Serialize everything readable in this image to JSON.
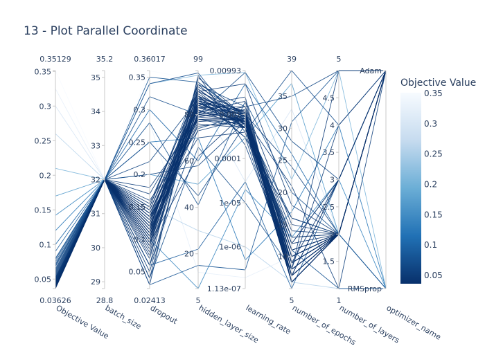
{
  "chart_data": {
    "type": "parallel_coordinates",
    "title": "13 - Plot Parallel Coordinate",
    "colorbar": {
      "title": "Objective Value",
      "range": [
        0.03626,
        0.35129
      ],
      "ticks": [
        "0.35",
        "0.3",
        "0.25",
        "0.2",
        "0.15",
        "0.1",
        "0.05"
      ],
      "tick_values": [
        0.35,
        0.3,
        0.25,
        0.2,
        0.15,
        0.1,
        0.05
      ],
      "colorscale": [
        "#08306b",
        "#2171b5",
        "#6baed6",
        "#c6dbef",
        "#f7fbff"
      ]
    },
    "dimensions": [
      {
        "label": "Objective Value",
        "range": [
          0.03626,
          0.35129
        ],
        "range_labels": [
          "0.03626",
          "0.35129"
        ],
        "scale": "linear",
        "ticks": [
          0.05,
          0.1,
          0.15,
          0.2,
          0.25,
          0.3,
          0.35
        ],
        "tick_labels": [
          "0.05",
          "0.1",
          "0.15",
          "0.2",
          "0.25",
          "0.3",
          "0.35"
        ]
      },
      {
        "label": "batch_size",
        "range": [
          28.8,
          35.2
        ],
        "range_labels": [
          "28.8",
          "35.2"
        ],
        "scale": "linear",
        "ticks": [
          29,
          30,
          31,
          32,
          33,
          34,
          35
        ],
        "tick_labels": [
          "29",
          "30",
          "31",
          "32",
          "33",
          "34",
          "35"
        ]
      },
      {
        "label": "dropout",
        "range": [
          0.02413,
          0.36017
        ],
        "range_labels": [
          "0.02413",
          "0.36017"
        ],
        "scale": "linear",
        "ticks": [
          0.05,
          0.1,
          0.15,
          0.2,
          0.25,
          0.3,
          0.35
        ],
        "tick_labels": [
          "0.05",
          "0.1",
          "0.15",
          "0.2",
          "0.25",
          "0.3",
          "0.35"
        ]
      },
      {
        "label": "hidden_layer_size",
        "range": [
          5,
          99
        ],
        "range_labels": [
          "5",
          "99"
        ],
        "scale": "linear",
        "ticks": [
          20,
          40,
          60,
          80
        ],
        "tick_labels": [
          "20",
          "40",
          "60",
          "80"
        ]
      },
      {
        "label": "learning_rate",
        "range": [
          1.13e-07,
          0.00993
        ],
        "range_labels": [
          "1.13e-07",
          "0.00993"
        ],
        "scale": "log",
        "ticks": [
          1e-06,
          1e-05,
          0.0001,
          0.001
        ],
        "tick_labels": [
          "1e-06",
          "1e-05",
          "0.0001",
          "0.001"
        ]
      },
      {
        "label": "number_of_epochs",
        "range": [
          5,
          39
        ],
        "range_labels": [
          "5",
          "39"
        ],
        "scale": "linear",
        "ticks": [
          10,
          15,
          20,
          25,
          30,
          35
        ],
        "tick_labels": [
          "10",
          "15",
          "20",
          "25",
          "30",
          "35"
        ]
      },
      {
        "label": "number_of_layers",
        "range": [
          1,
          5
        ],
        "range_labels": [
          "1",
          "5"
        ],
        "scale": "linear",
        "ticks": [
          1.5,
          2,
          2.5,
          3,
          3.5,
          4,
          4.5
        ],
        "tick_labels": [
          "1.5",
          "2",
          "2.5",
          "3",
          "3.5",
          "4",
          "4.5"
        ]
      },
      {
        "label": "optimizer_name",
        "range": [
          0,
          1
        ],
        "range_labels": [
          "RMSprop",
          "Adam"
        ],
        "scale": "categorical",
        "ticks": [],
        "tick_labels": []
      }
    ],
    "records": [
      [
        0.0363,
        32,
        0.12,
        82,
        0.0005,
        6,
        2,
        1
      ],
      [
        0.0365,
        32,
        0.11,
        80,
        0.0007,
        8,
        2,
        1
      ],
      [
        0.037,
        32,
        0.1,
        85,
        0.0006,
        7,
        2,
        1
      ],
      [
        0.0372,
        32,
        0.13,
        78,
        0.0008,
        9,
        2,
        1
      ],
      [
        0.0375,
        32,
        0.09,
        88,
        0.0005,
        6,
        2,
        1
      ],
      [
        0.0378,
        32,
        0.14,
        83,
        0.001,
        10,
        2,
        1
      ],
      [
        0.038,
        32,
        0.12,
        86,
        0.0009,
        7,
        2,
        1
      ],
      [
        0.0382,
        32,
        0.105,
        79,
        0.0007,
        8,
        2,
        1
      ],
      [
        0.0385,
        32,
        0.115,
        90,
        0.0011,
        6,
        2,
        1
      ],
      [
        0.0388,
        32,
        0.125,
        84,
        0.0006,
        9,
        2,
        1
      ],
      [
        0.039,
        32,
        0.095,
        81,
        0.0008,
        11,
        2,
        1
      ],
      [
        0.0392,
        32,
        0.135,
        87,
        0.0012,
        7,
        2,
        1
      ],
      [
        0.0395,
        32,
        0.11,
        76,
        0.0005,
        8,
        2,
        1
      ],
      [
        0.0398,
        32,
        0.1,
        92,
        0.001,
        10,
        2,
        1
      ],
      [
        0.04,
        32,
        0.145,
        85,
        0.0007,
        6,
        2,
        1
      ],
      [
        0.0403,
        32,
        0.12,
        80,
        0.0009,
        12,
        2,
        1
      ],
      [
        0.0405,
        32,
        0.13,
        89,
        0.0006,
        7,
        3,
        1
      ],
      [
        0.0408,
        32,
        0.085,
        83,
        0.0015,
        9,
        2,
        1
      ],
      [
        0.041,
        32,
        0.115,
        77,
        0.0008,
        8,
        2,
        1
      ],
      [
        0.0413,
        32,
        0.15,
        91,
        0.0007,
        6,
        2,
        1
      ],
      [
        0.0415,
        32,
        0.105,
        86,
        0.0011,
        11,
        2,
        1
      ],
      [
        0.0418,
        32,
        0.125,
        82,
        0.0005,
        13,
        2,
        1
      ],
      [
        0.042,
        32,
        0.095,
        88,
        0.0009,
        7,
        2,
        1
      ],
      [
        0.0423,
        32,
        0.14,
        79,
        0.0013,
        9,
        3,
        1
      ],
      [
        0.0425,
        32,
        0.11,
        93,
        0.0006,
        8,
        2,
        1
      ],
      [
        0.0428,
        32,
        0.08,
        84,
        0.001,
        10,
        2,
        1
      ],
      [
        0.043,
        32,
        0.135,
        75,
        0.0007,
        6,
        2,
        1
      ],
      [
        0.0433,
        32,
        0.12,
        87,
        0.0008,
        14,
        2,
        1
      ],
      [
        0.0435,
        32,
        0.1,
        81,
        0.002,
        7,
        2,
        1
      ],
      [
        0.0438,
        32,
        0.155,
        90,
        0.0005,
        9,
        2,
        1
      ],
      [
        0.044,
        32,
        0.09,
        85,
        0.0012,
        8,
        2,
        1
      ],
      [
        0.0443,
        32,
        0.13,
        78,
        0.0006,
        12,
        3,
        1
      ],
      [
        0.0445,
        32,
        0.115,
        94,
        0.0009,
        6,
        2,
        1
      ],
      [
        0.0448,
        32,
        0.075,
        83,
        0.0007,
        10,
        2,
        1
      ],
      [
        0.045,
        32,
        0.145,
        88,
        0.001,
        7,
        2,
        1
      ],
      [
        0.0455,
        32,
        0.105,
        80,
        0.0015,
        15,
        2,
        1
      ],
      [
        0.046,
        32,
        0.125,
        86,
        0.0005,
        9,
        2,
        1
      ],
      [
        0.0465,
        32,
        0.16,
        73,
        0.0008,
        8,
        4,
        1
      ],
      [
        0.047,
        32,
        0.07,
        91,
        0.0006,
        11,
        2,
        1
      ],
      [
        0.0475,
        32,
        0.11,
        84,
        0.0025,
        6,
        2,
        1
      ],
      [
        0.048,
        32,
        0.06,
        96,
        0.0009,
        13,
        2,
        1
      ],
      [
        0.0485,
        32,
        0.135,
        70,
        0.0004,
        7,
        3,
        1
      ],
      [
        0.049,
        32,
        0.05,
        88,
        0.0003,
        16,
        2,
        1
      ],
      [
        0.0495,
        32,
        0.17,
        82,
        0.0007,
        10,
        2,
        1
      ],
      [
        0.05,
        32,
        0.095,
        62,
        0.0011,
        8,
        5,
        1
      ],
      [
        0.051,
        32,
        0.04,
        90,
        0.005,
        18,
        2,
        1
      ],
      [
        0.052,
        32,
        0.18,
        78,
        0.0005,
        6,
        2,
        1
      ],
      [
        0.053,
        32,
        0.12,
        85,
        0.0008,
        21,
        1,
        1
      ],
      [
        0.055,
        32,
        0.03,
        97,
        0.0002,
        9,
        2,
        1
      ],
      [
        0.057,
        32,
        0.2,
        58,
        0.0007,
        12,
        3,
        1
      ],
      [
        0.059,
        32,
        0.06,
        74,
        0.001,
        24,
        2,
        1
      ],
      [
        0.061,
        32,
        0.22,
        87,
        0.0003,
        7,
        2,
        1
      ],
      [
        0.063,
        32,
        0.15,
        93,
        0.0015,
        35,
        5,
        1
      ],
      [
        0.065,
        32,
        0.25,
        45,
        0.0006,
        16,
        2,
        1
      ],
      [
        0.068,
        32,
        0.32,
        80,
        0.009,
        28,
        3,
        1
      ],
      [
        0.07,
        32,
        0.04,
        66,
        1e-05,
        8,
        2,
        1
      ],
      [
        0.072,
        32,
        0.34,
        98,
        0.0004,
        39,
        4,
        1
      ],
      [
        0.075,
        32,
        0.28,
        41,
        0.002,
        20,
        2,
        0
      ],
      [
        0.078,
        32,
        0.03,
        15,
        3e-07,
        31,
        5,
        1
      ],
      [
        0.08,
        32,
        0.35,
        94,
        0.0008,
        11,
        1,
        0
      ],
      [
        0.09,
        32,
        0.06,
        22,
        3e-05,
        5,
        3,
        1
      ],
      [
        0.1,
        32,
        0.3,
        60,
        0.005,
        26,
        2,
        0
      ],
      [
        0.12,
        32,
        0.25,
        70,
        5e-07,
        17,
        4,
        0
      ],
      [
        0.142,
        32,
        0.1,
        5,
        2e-05,
        13,
        3,
        0
      ],
      [
        0.17,
        32,
        0.2,
        50,
        0.0003,
        37,
        2,
        0
      ],
      [
        0.21,
        32,
        0.34,
        97,
        0.009,
        22,
        5,
        0
      ],
      [
        0.26,
        32,
        0.15,
        30,
        1e-06,
        6,
        1,
        0
      ],
      [
        0.3,
        32,
        0.03,
        88,
        3e-05,
        33,
        2,
        1
      ],
      [
        0.325,
        32,
        0.28,
        12,
        2e-07,
        10,
        3,
        0
      ],
      [
        0.3513,
        32,
        0.36,
        95,
        0.00993,
        5,
        1,
        0
      ]
    ]
  }
}
